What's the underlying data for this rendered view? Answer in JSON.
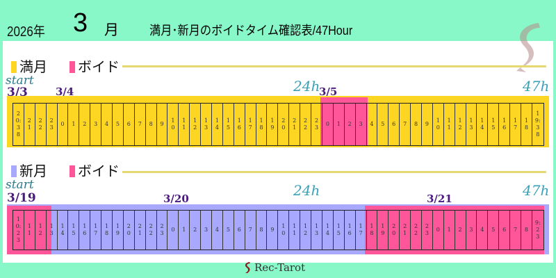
{
  "header": {
    "year": "2026年",
    "month": "3",
    "month_suffix": "月",
    "title": "満月･新月のボイドタイム確認表/47Hour"
  },
  "colors": {
    "background": "#88f8c8",
    "full_moon": "#fdd523",
    "new_moon": "#a8a8ff",
    "void": "#ff5599"
  },
  "sections": [
    {
      "legend_moon": "満月",
      "legend_void": "ボイド",
      "start_label": "start",
      "h24": "24h",
      "h47": "47h",
      "dates": [
        "3/3",
        "3/4",
        "3/5"
      ],
      "cells": [
        "20:38",
        "21",
        "22",
        "23",
        "0",
        "1",
        "2",
        "3",
        "4",
        "5",
        "6",
        "7",
        "8",
        "9",
        "10",
        "11",
        "12",
        "13",
        "14",
        "15",
        "16",
        "17",
        "18",
        "19",
        "20",
        "21",
        "22",
        "23",
        "0",
        "1",
        "2",
        "3",
        "4",
        "5",
        "6",
        "7",
        "8",
        "9",
        "10",
        "11",
        "12",
        "13",
        "14",
        "15",
        "16",
        "17",
        "18",
        "19:38"
      ],
      "void_hours": [
        [
          28,
          32
        ]
      ]
    },
    {
      "legend_moon": "新月",
      "legend_void": "ボイド",
      "start_label": "start",
      "h24": "24h",
      "h47": "47h",
      "dates": [
        "3/19",
        "3/20",
        "3/21"
      ],
      "cells": [
        "10:23",
        "11",
        "12",
        "13",
        "14",
        "15",
        "16",
        "17",
        "18",
        "19",
        "20",
        "21",
        "22",
        "23",
        "0",
        "1",
        "2",
        "3",
        "4",
        "5",
        "6",
        "7",
        "8",
        "9",
        "10",
        "11",
        "12",
        "13",
        "14",
        "15",
        "16",
        "17",
        "18",
        "19",
        "20",
        "21",
        "22",
        "23",
        "0",
        "1",
        "2",
        "3",
        "4",
        "5",
        "6",
        "7",
        "8",
        "9:23"
      ],
      "void_hours": [
        [
          0,
          3.5
        ],
        [
          32,
          48
        ]
      ]
    }
  ],
  "footer": {
    "brand": "Rec-Tarot"
  }
}
